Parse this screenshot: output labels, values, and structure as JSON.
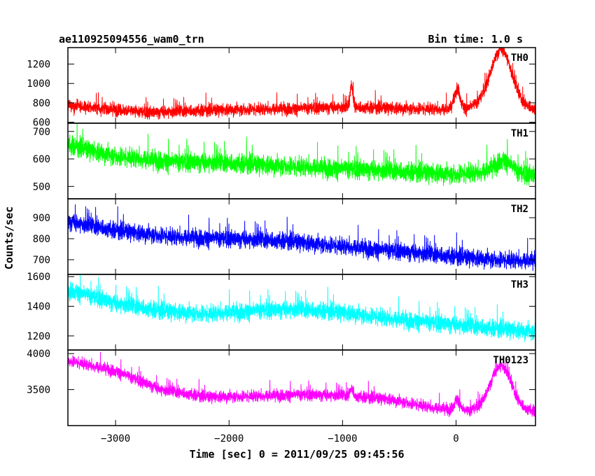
{
  "chart_data": {
    "type": "line",
    "title": "ae110925094556_wam0_trn",
    "bin_time_label": "Bin time: 1.0 s",
    "xlabel": "Time [sec] 0 = 2011/09/25 09:45:56",
    "ylabel": "Counts/sec",
    "xlim": [
      -3420,
      700
    ],
    "xticks": [
      -3000,
      -2000,
      -1000,
      0
    ],
    "grid": false,
    "series": [
      {
        "name": "TH0",
        "color": "#ff0000",
        "ylim": [
          590,
          1370
        ],
        "yticks": [
          600,
          800,
          1000,
          1200
        ],
        "trend": [
          [
            -3400,
            770
          ],
          [
            -3000,
            730
          ],
          [
            -2700,
            700
          ],
          [
            -2300,
            720
          ],
          [
            -2000,
            730
          ],
          [
            -1500,
            740
          ],
          [
            -1000,
            755
          ],
          [
            -700,
            750
          ],
          [
            -300,
            740
          ],
          [
            -100,
            735
          ],
          [
            100,
            745
          ],
          [
            250,
            800
          ],
          [
            700,
            740
          ]
        ],
        "noise": 55,
        "peaks": [
          {
            "x": -920,
            "amp": 230,
            "width": 12
          },
          {
            "x": 10,
            "amp": 210,
            "width": 25
          },
          {
            "x": 400,
            "amp": 570,
            "width": 90
          }
        ]
      },
      {
        "name": "TH1",
        "color": "#00ff00",
        "ylim": [
          455,
          730
        ],
        "yticks": [
          500,
          600,
          700
        ],
        "trend": [
          [
            -3400,
            650
          ],
          [
            -3000,
            610
          ],
          [
            -2500,
            590
          ],
          [
            -2000,
            585
          ],
          [
            -1500,
            575
          ],
          [
            -1000,
            565
          ],
          [
            -500,
            555
          ],
          [
            0,
            545
          ],
          [
            300,
            555
          ],
          [
            700,
            540
          ]
        ],
        "noise": 30,
        "peaks": [
          {
            "x": 420,
            "amp": 45,
            "width": 70
          }
        ]
      },
      {
        "name": "TH2",
        "color": "#0000ff",
        "ylim": [
          630,
          990
        ],
        "yticks": [
          700,
          800,
          900
        ],
        "trend": [
          [
            -3400,
            880
          ],
          [
            -3000,
            840
          ],
          [
            -2500,
            810
          ],
          [
            -2000,
            800
          ],
          [
            -1500,
            790
          ],
          [
            -1000,
            765
          ],
          [
            -500,
            740
          ],
          [
            0,
            715
          ],
          [
            400,
            700
          ],
          [
            700,
            695
          ]
        ],
        "noise": 35,
        "peaks": []
      },
      {
        "name": "TH3",
        "color": "#00ffff",
        "ylim": [
          1105,
          1615
        ],
        "yticks": [
          1200,
          1400,
          1600
        ],
        "trend": [
          [
            -3400,
            1510
          ],
          [
            -3000,
            1420
          ],
          [
            -2600,
            1370
          ],
          [
            -2200,
            1350
          ],
          [
            -1800,
            1370
          ],
          [
            -1400,
            1380
          ],
          [
            -1000,
            1360
          ],
          [
            -600,
            1320
          ],
          [
            -200,
            1290
          ],
          [
            200,
            1260
          ],
          [
            700,
            1230
          ]
        ],
        "noise": 50,
        "peaks": []
      },
      {
        "name": "TH0123",
        "color": "#ff00ff",
        "ylim": [
          3000,
          4050
        ],
        "yticks": [
          3500,
          4000
        ],
        "trend": [
          [
            -3400,
            3900
          ],
          [
            -3000,
            3760
          ],
          [
            -2600,
            3500
          ],
          [
            -2200,
            3400
          ],
          [
            -1800,
            3410
          ],
          [
            -1400,
            3430
          ],
          [
            -1000,
            3420
          ],
          [
            -600,
            3370
          ],
          [
            -200,
            3250
          ],
          [
            100,
            3200
          ],
          [
            300,
            3300
          ],
          [
            700,
            3200
          ]
        ],
        "noise": 70,
        "peaks": [
          {
            "x": -920,
            "amp": 100,
            "width": 15
          },
          {
            "x": 10,
            "amp": 150,
            "width": 25
          },
          {
            "x": 400,
            "amp": 560,
            "width": 85
          }
        ]
      }
    ]
  }
}
